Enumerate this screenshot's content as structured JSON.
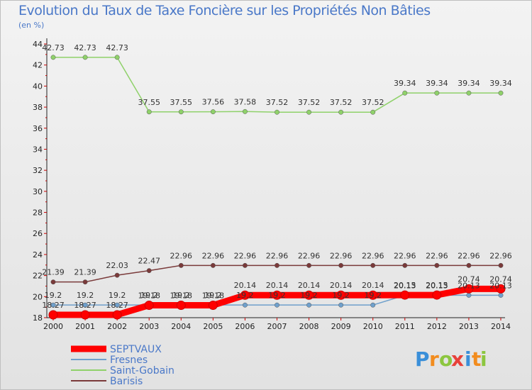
{
  "chart_data": {
    "type": "line",
    "title": "Evolution du Taux de Taxe Foncière sur les Propriétés Non Bâties",
    "subtitle": "(en %)",
    "xlabel": "",
    "ylabel": "",
    "ylim": [
      18,
      44
    ],
    "y_ticks": [
      18,
      20,
      22,
      24,
      26,
      28,
      30,
      32,
      34,
      36,
      38,
      40,
      42,
      44
    ],
    "categories": [
      "2000",
      "2001",
      "2002",
      "2003",
      "2004",
      "2005",
      "2006",
      "2007",
      "2008",
      "2009",
      "2010",
      "2011",
      "2012",
      "2013",
      "2014"
    ],
    "grid": false,
    "legend_position": "bottom-left",
    "series": [
      {
        "name": "SEPTVAUX",
        "color": "#ff0000",
        "emphasis": true,
        "values": [
          18.27,
          18.27,
          18.27,
          19.18,
          19.18,
          19.18,
          20.14,
          20.14,
          20.14,
          20.14,
          20.14,
          20.15,
          20.15,
          20.74,
          20.74
        ],
        "labels": [
          "18.27",
          "18.27",
          "18.27",
          "19.18",
          "19.18",
          "19.18",
          "20.14",
          "20.14",
          "20.14",
          "20.14",
          "20.14",
          "20.15",
          "20.15",
          "20.74",
          "20.74"
        ]
      },
      {
        "name": "Fresnes",
        "color": "#6fa0cc",
        "values": [
          19.2,
          19.2,
          19.2,
          19.2,
          19.2,
          19.2,
          19.2,
          19.2,
          19.2,
          19.2,
          19.2,
          20.13,
          20.13,
          20.13,
          20.13
        ],
        "labels": [
          "19.2",
          "19.2",
          "19.2",
          "19.2",
          "19.2",
          "19.2",
          "19.2",
          "19.2",
          "19.2",
          "19.2",
          "19.2",
          "20.13",
          "20.13",
          "20.13",
          "20.13"
        ]
      },
      {
        "name": "Saint-Gobain",
        "color": "#8fd16a",
        "values": [
          42.73,
          42.73,
          42.73,
          37.55,
          37.55,
          37.56,
          37.58,
          37.52,
          37.52,
          37.52,
          37.52,
          39.34,
          39.34,
          39.34,
          39.34
        ],
        "labels": [
          "42.73",
          "42.73",
          "42.73",
          "37.55",
          "37.55",
          "37.56",
          "37.58",
          "37.52",
          "37.52",
          "37.52",
          "37.52",
          "39.34",
          "39.34",
          "39.34",
          "39.34"
        ]
      },
      {
        "name": "Barisis",
        "color": "#7a3a3a",
        "values": [
          21.39,
          21.39,
          22.03,
          22.47,
          22.96,
          22.96,
          22.96,
          22.96,
          22.96,
          22.96,
          22.96,
          22.96,
          22.96,
          22.96,
          22.96
        ],
        "labels": [
          "21.39",
          "21.39",
          "22.03",
          "22.47",
          "22.96",
          "22.96",
          "22.96",
          "22.96",
          "22.96",
          "22.96",
          "22.96",
          "22.96",
          "22.96",
          "22.96",
          "22.96"
        ]
      }
    ]
  },
  "brand": {
    "letters": [
      "P",
      "r",
      "o",
      "x",
      "i",
      "t",
      "i"
    ],
    "colors": [
      "#3a8fd9",
      "#f28c1e",
      "#8cc63f",
      "#e8413a",
      "#3a8fd9",
      "#f28c1e",
      "#8cc63f"
    ]
  }
}
